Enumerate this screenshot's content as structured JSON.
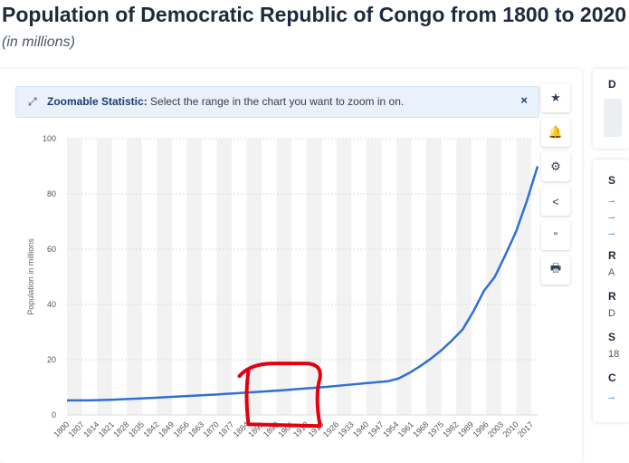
{
  "page": {
    "title": "Population of Democratic Republic of Congo from 1800 to 2020",
    "subtitle": "(in millions)"
  },
  "zoom_banner": {
    "label": "Zoomable Statistic:",
    "text": "Select the range in the chart you want to zoom in on.",
    "close": "×"
  },
  "toolbar": [
    {
      "name": "favorite",
      "icon": "star-icon",
      "glyph": "★"
    },
    {
      "name": "notification",
      "icon": "bell-icon",
      "glyph": "🔔"
    },
    {
      "name": "settings",
      "icon": "gear-icon",
      "glyph": "⚙"
    },
    {
      "name": "share",
      "icon": "share-icon",
      "glyph": "<"
    },
    {
      "name": "cite",
      "icon": "quote-icon",
      "glyph": "“"
    },
    {
      "name": "print",
      "icon": "print-icon",
      "glyph": "🖶"
    }
  ],
  "side_panel": {
    "letters": [
      "D",
      "S",
      "R",
      "A",
      "R",
      "D",
      "S",
      "18",
      "C"
    ]
  },
  "colors": {
    "line": "#2f6fd6",
    "annotation": "#e3000f",
    "stripe": "#f2f2f2",
    "grid": "#dddddd"
  },
  "chart_data": {
    "type": "line",
    "title": "Population of Democratic Republic of Congo from 1800 to 2020",
    "subtitle": "(in millions)",
    "xlabel": "",
    "ylabel": "Population in millions",
    "ylim": [
      0,
      100
    ],
    "yticks": [
      0,
      20,
      40,
      60,
      80,
      100
    ],
    "xlim": [
      1800,
      2020
    ],
    "xticks": [
      "1800",
      "1807",
      "1814",
      "1821",
      "1828",
      "1835",
      "1842",
      "1849",
      "1856",
      "1863",
      "1870",
      "1877",
      "1884",
      "1891",
      "1898",
      "1905",
      "1912",
      "1919",
      "1926",
      "1933",
      "1940",
      "1947",
      "1954",
      "1961",
      "1968",
      "1975",
      "1982",
      "1989",
      "1996",
      "2003",
      "2010",
      "2017"
    ],
    "grid": true,
    "series": [
      {
        "x": [
          1800,
          1810,
          1820,
          1830,
          1840,
          1850,
          1860,
          1870,
          1880,
          1890,
          1900,
          1910,
          1920,
          1930,
          1940,
          1950,
          1955,
          1960,
          1965,
          1970,
          1975,
          1980,
          1985,
          1990,
          1995,
          2000,
          2005,
          2010,
          2015,
          2020
        ],
        "values": [
          5.3,
          5.3,
          5.5,
          5.8,
          6.2,
          6.6,
          7.0,
          7.4,
          7.9,
          8.4,
          8.9,
          9.5,
          10.1,
          10.8,
          11.5,
          12.2,
          13.2,
          15.2,
          17.6,
          20.3,
          23.4,
          27.0,
          31.0,
          37.5,
          45.0,
          50.0,
          58.0,
          66.5,
          77.5,
          90.0
        ]
      }
    ],
    "annotation": {
      "type": "hand-drawn-box",
      "x_range": [
        1884,
        1920
      ],
      "y_range": [
        -4,
        18
      ]
    }
  }
}
